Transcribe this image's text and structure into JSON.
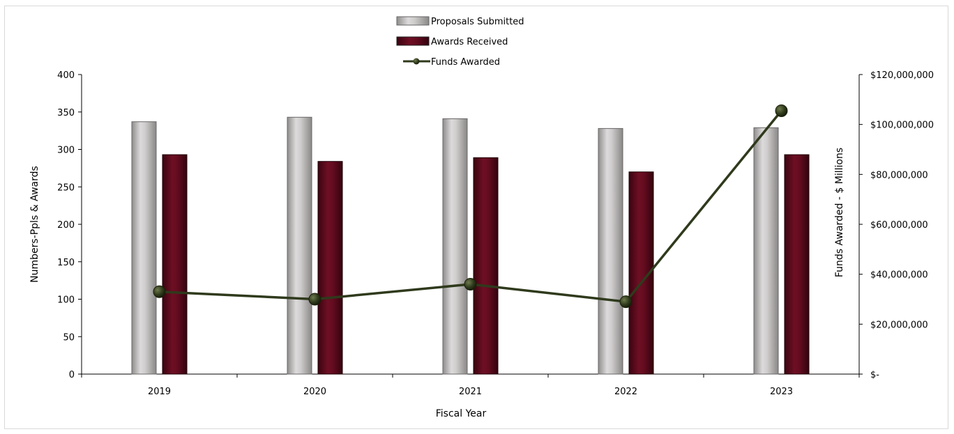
{
  "chart_data": {
    "type": "bar",
    "categories": [
      "2019",
      "2020",
      "2021",
      "2022",
      "2023"
    ],
    "series": [
      {
        "name": "Proposals Submitted",
        "type": "bar",
        "axis": "left",
        "values": [
          337,
          343,
          341,
          328,
          329
        ]
      },
      {
        "name": "Awards Received",
        "type": "bar",
        "axis": "left",
        "values": [
          293,
          284,
          289,
          270,
          293
        ]
      },
      {
        "name": "Funds Awarded",
        "type": "line",
        "axis": "right",
        "values": [
          33000000,
          30000000,
          36000000,
          29000000,
          105500000
        ]
      }
    ],
    "xlabel": "Fiscal Year",
    "ylabel": "Numbers-Ppls & Awards",
    "y2label": "Funds Awarded - $ Millions",
    "ylim": [
      0,
      400
    ],
    "y2lim": [
      0,
      120000000
    ],
    "yticks": [
      "0",
      "50",
      "100",
      "150",
      "200",
      "250",
      "300",
      "350",
      "400"
    ],
    "y2ticks": [
      "$-",
      "$20,000,000",
      "$40,000,000",
      "$60,000,000",
      "$80,000,000",
      "$100,000,000",
      "$120,000,000"
    ],
    "grid": false,
    "legend": "top-center",
    "colors": {
      "proposals": "#bfbcbc",
      "awards": "#5a0a1c",
      "funds": "#2f3a1c"
    }
  }
}
